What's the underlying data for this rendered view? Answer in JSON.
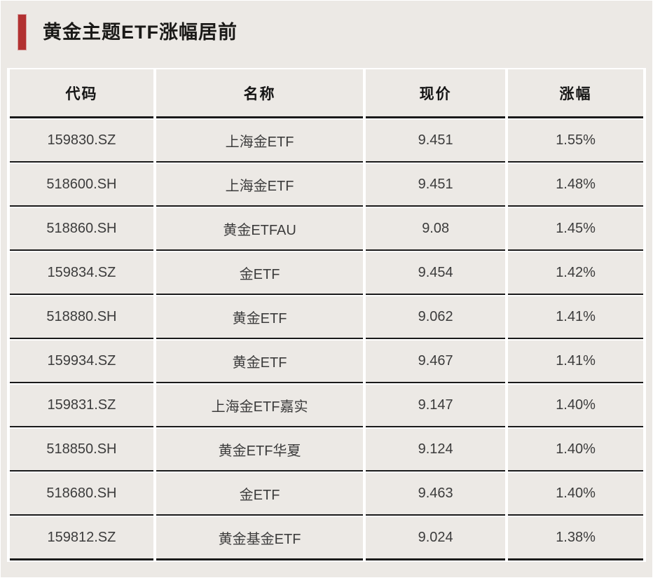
{
  "header": {
    "title": "黄金主题ETF涨幅居前"
  },
  "colors": {
    "accent_red": "#b23131",
    "background": "#ece9e5",
    "rule_black": "#1a1a1a",
    "gap_white": "#ffffff"
  },
  "chart_data": {
    "type": "table",
    "title": "黄金主题ETF涨幅居前",
    "columns": [
      "代码",
      "名称",
      "现价",
      "涨幅"
    ],
    "rows": [
      [
        "159830.SZ",
        "上海金ETF",
        "9.451",
        "1.55%"
      ],
      [
        "518600.SH",
        "上海金ETF",
        "9.451",
        "1.48%"
      ],
      [
        "518860.SH",
        "黄金ETFAU",
        "9.08",
        "1.45%"
      ],
      [
        "159834.SZ",
        "金ETF",
        "9.454",
        "1.42%"
      ],
      [
        "518880.SH",
        "黄金ETF",
        "9.062",
        "1.41%"
      ],
      [
        "159934.SZ",
        "黄金ETF",
        "9.467",
        "1.41%"
      ],
      [
        "159831.SZ",
        "上海金ETF嘉实",
        "9.147",
        "1.40%"
      ],
      [
        "518850.SH",
        "黄金ETF华夏",
        "9.124",
        "1.40%"
      ],
      [
        "518680.SH",
        "金ETF",
        "9.463",
        "1.40%"
      ],
      [
        "159812.SZ",
        "黄金基金ETF",
        "9.024",
        "1.38%"
      ]
    ],
    "layout": {
      "grid": "black horizontal rules between rows, white vertical gaps between columns",
      "alignment": "all cells centered"
    }
  }
}
